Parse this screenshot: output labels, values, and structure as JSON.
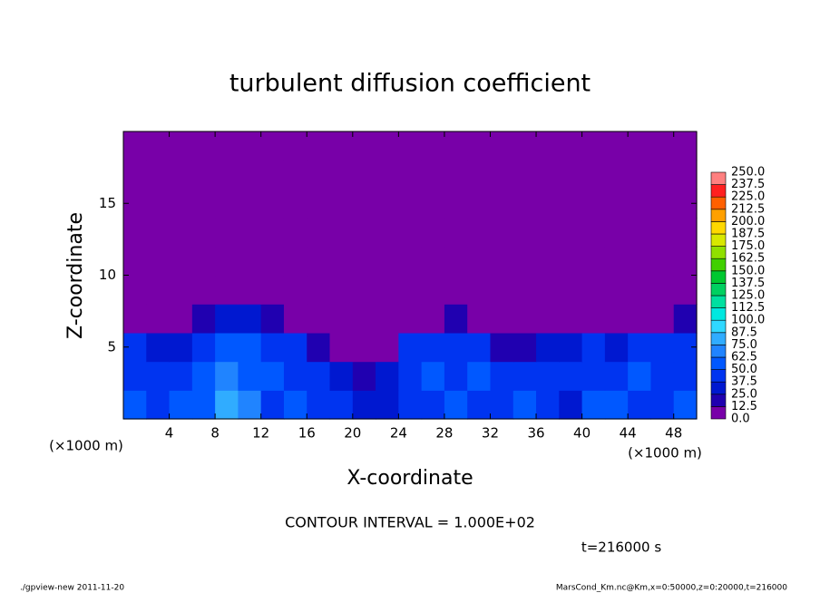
{
  "chart_data": {
    "type": "heatmap",
    "title": "turbulent diffusion coefficient",
    "xlabel": "X-coordinate",
    "ylabel": "Z-coordinate",
    "x_unit": "(×1000 m)",
    "annotation": "CONTOUR INTERVAL = 1.000E+02",
    "time_label": "t=216000 s",
    "footer_left": "./gpview-new  2011-11-20",
    "footer_right": "MarsCond_Km.nc@Km,x=0:50000,z=0:20000,t=216000",
    "xlim": [
      0,
      50
    ],
    "ylim": [
      0,
      20
    ],
    "xticks": [
      4,
      8,
      12,
      16,
      20,
      24,
      28,
      32,
      36,
      40,
      44,
      48
    ],
    "yticks": [
      5,
      10,
      15
    ],
    "z": [
      [
        55,
        45,
        50,
        60,
        75,
        70,
        45,
        50,
        45,
        40,
        30,
        35,
        40,
        45,
        55,
        45,
        40,
        50,
        45,
        35,
        55,
        50,
        45,
        40,
        50
      ],
      [
        45,
        40,
        45,
        55,
        65,
        55,
        50,
        45,
        40,
        35,
        20,
        25,
        45,
        55,
        45,
        50,
        45,
        45,
        40,
        45,
        40,
        45,
        50,
        45,
        45
      ],
      [
        40,
        35,
        30,
        45,
        55,
        50,
        45,
        40,
        20,
        5,
        0,
        5,
        40,
        45,
        40,
        45,
        20,
        15,
        25,
        30,
        40,
        35,
        40,
        40,
        45
      ],
      [
        10,
        5,
        0,
        15,
        30,
        25,
        15,
        5,
        0,
        0,
        0,
        0,
        5,
        10,
        20,
        10,
        5,
        0,
        5,
        0,
        0,
        0,
        0,
        10,
        15
      ],
      [
        0,
        0,
        0,
        0,
        0,
        0,
        0,
        0,
        0,
        0,
        0,
        0,
        0,
        0,
        0,
        0,
        0,
        0,
        0,
        0,
        0,
        0,
        0,
        0,
        0
      ],
      [
        0,
        0,
        0,
        0,
        0,
        0,
        0,
        0,
        0,
        0,
        0,
        0,
        0,
        0,
        0,
        0,
        0,
        0,
        0,
        0,
        0,
        0,
        0,
        0,
        0
      ],
      [
        0,
        0,
        0,
        0,
        0,
        0,
        0,
        0,
        0,
        0,
        0,
        0,
        0,
        0,
        0,
        0,
        0,
        0,
        0,
        0,
        0,
        0,
        0,
        0,
        0
      ],
      [
        0,
        0,
        0,
        0,
        0,
        0,
        0,
        0,
        0,
        0,
        0,
        0,
        0,
        0,
        0,
        0,
        0,
        0,
        0,
        0,
        0,
        0,
        0,
        0,
        0
      ],
      [
        0,
        0,
        0,
        0,
        0,
        0,
        0,
        0,
        0,
        0,
        0,
        0,
        0,
        0,
        0,
        0,
        0,
        0,
        0,
        0,
        0,
        0,
        0,
        0,
        0
      ],
      [
        0,
        0,
        0,
        0,
        0,
        0,
        0,
        0,
        0,
        0,
        0,
        0,
        0,
        0,
        0,
        0,
        0,
        0,
        0,
        0,
        0,
        0,
        0,
        0,
        0
      ]
    ],
    "levels": [
      {
        "value": 0,
        "label": "0.0"
      },
      {
        "value": 12.5,
        "label": "12.5"
      },
      {
        "value": 25,
        "label": "25.0"
      },
      {
        "value": 37.5,
        "label": "37.5"
      },
      {
        "value": 50,
        "label": "50.0"
      },
      {
        "value": 62.5,
        "label": "62.5"
      },
      {
        "value": 75,
        "label": "75.0"
      },
      {
        "value": 87.5,
        "label": "87.5"
      },
      {
        "value": 100,
        "label": "100.0"
      },
      {
        "value": 112.5,
        "label": "112.5"
      },
      {
        "value": 125,
        "label": "125.0"
      },
      {
        "value": 137.5,
        "label": "137.5"
      },
      {
        "value": 150,
        "label": "150.0"
      },
      {
        "value": 162.5,
        "label": "162.5"
      },
      {
        "value": 175,
        "label": "175.0"
      },
      {
        "value": 187.5,
        "label": "187.5"
      },
      {
        "value": 200,
        "label": "200.0"
      },
      {
        "value": 212.5,
        "label": "212.5"
      },
      {
        "value": 225,
        "label": "225.0"
      },
      {
        "value": 237.5,
        "label": "237.5"
      },
      {
        "value": 250,
        "label": "250.0"
      }
    ],
    "colors": [
      "#7800a8",
      "#2000b0",
      "#0018d0",
      "#0034f0",
      "#0058ff",
      "#2084ff",
      "#30acff",
      "#30d8ff",
      "#00e8e0",
      "#00e0a0",
      "#00d060",
      "#00c830",
      "#40d000",
      "#90e000",
      "#d8e800",
      "#ffd800",
      "#ffa000",
      "#ff6000",
      "#ff2020",
      "#ff8080"
    ]
  }
}
